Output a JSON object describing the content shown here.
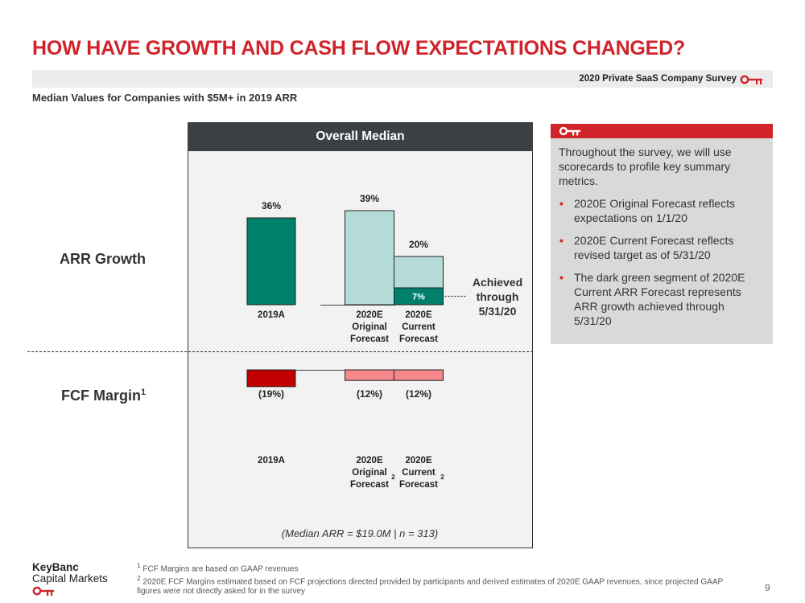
{
  "slide": {
    "title": "HOW HAVE GROWTH AND CASH FLOW EXPECTATIONS CHANGED?",
    "survey_label": "2020 Private SaaS Company Survey",
    "subtitle": "Median Values for Companies with $5M+ in 2019 ARR",
    "page_number": "9"
  },
  "brand": {
    "primary": "#d0232a",
    "dark_header": "#3c3f43"
  },
  "panel": {
    "header": "Overall Median",
    "footer": "(Median ARR = $19.0M | n = 313)",
    "row_labels": {
      "arr": "ARR Growth",
      "fcf": "FCF Margin",
      "fcf_sup": "1"
    },
    "achieved_label": [
      "Achieved",
      "through",
      "5/31/20"
    ]
  },
  "chart_data": [
    {
      "type": "bar",
      "title": "ARR Growth",
      "categories": [
        "2019A",
        "2020E Original Forecast",
        "2020E Current Forecast"
      ],
      "category_labels": [
        [
          "2019A"
        ],
        [
          "2020E",
          "Original",
          "Forecast"
        ],
        [
          "2020E",
          "Current",
          "Forecast"
        ]
      ],
      "values": [
        36,
        39,
        20
      ],
      "value_labels": [
        "36%",
        "39%",
        "20%"
      ],
      "unit": "%",
      "segment": {
        "category": "2020E Current Forecast",
        "value": 7,
        "label": "7%",
        "color": "#00806a"
      },
      "colors": [
        "#00806a",
        "#b6dcd9",
        "#b6dcd9"
      ]
    },
    {
      "type": "bar",
      "title": "FCF Margin",
      "categories": [
        "2019A",
        "2020E Original Forecast",
        "2020E Current Forecast"
      ],
      "category_labels": [
        [
          "2019A"
        ],
        [
          "2020E",
          "Original",
          "Forecast"
        ],
        [
          "2020E",
          "Current",
          "Forecast"
        ]
      ],
      "category_superscripts": [
        "",
        "2",
        "2"
      ],
      "values": [
        -19,
        -12,
        -12
      ],
      "value_labels": [
        "(19%)",
        "(12%)",
        "(12%)"
      ],
      "unit": "%",
      "colors": [
        "#c00000",
        "#f4888a",
        "#f4888a"
      ]
    }
  ],
  "info": {
    "intro": "Throughout the survey, we will use scorecards to profile key summary metrics.",
    "bullets": [
      "2020E Original Forecast reflects expectations on 1/1/20",
      "2020E Current Forecast reflects revised target as of 5/31/20",
      "The dark green segment of 2020E Current ARR Forecast represents ARR growth achieved through 5/31/20"
    ]
  },
  "footer": {
    "logo_line1": "KeyBanc",
    "logo_line2": "Capital Markets",
    "footnote1_num": "1",
    "footnote1": "FCF Margins are based on GAAP revenues",
    "footnote2_num": "2",
    "footnote2": "2020E FCF Margins estimated based on FCF projections directed provided by participants and derived estimates of 2020E GAAP revenues, since projected GAAP figures were not directly asked for in the survey"
  }
}
